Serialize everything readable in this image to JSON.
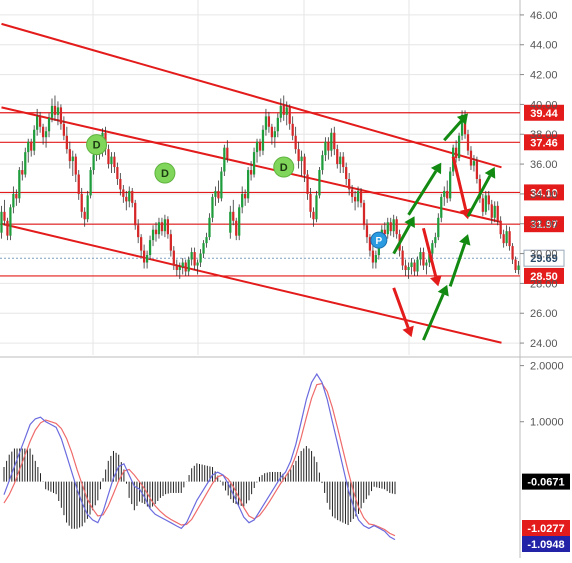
{
  "colors": {
    "background": "#ffffff",
    "grid": "#e6e6e6",
    "bull_candle": "#1f9d3c",
    "bear_candle": "#d62728",
    "wick": "#333333",
    "channel_line": "#e31b1b",
    "level_line": "#e31b1b",
    "level_label_bg": "#e31b1b",
    "current_label_bg": "#ffffff",
    "current_line": "#7f9fbf",
    "arrow_up": "#128a12",
    "arrow_down": "#e31b1b",
    "d_marker": "#7fd65a",
    "p_marker": "#2a9be0",
    "macd_line": "#6b6bdf",
    "signal_line": "#ef6b6b",
    "histogram": "#222222",
    "label_dark_bg": "#000000",
    "label_blue_bg": "#2323a8"
  },
  "chart_data": [
    {
      "type": "candlestick",
      "ylim": [
        23.2,
        47.0
      ],
      "yticks": [
        "46.00",
        "44.00",
        "42.00",
        "40.00",
        "38.00",
        "36.00",
        "34.00",
        "32.00",
        "30.00",
        "28.00",
        "26.00",
        "24.00"
      ],
      "ytick_values": [
        46,
        44,
        42,
        40,
        38,
        36,
        34,
        32,
        30,
        28,
        26,
        24
      ],
      "grid": true,
      "n_bars": 175,
      "candles": [
        [
          31.4,
          33.2,
          31.0,
          32.8
        ],
        [
          32.8,
          33.6,
          31.9,
          32.2
        ],
        [
          32.2,
          32.4,
          30.9,
          31.2
        ],
        [
          31.2,
          33.3,
          30.9,
          33.1
        ],
        [
          33.1,
          34.5,
          32.7,
          34.0
        ],
        [
          34.0,
          34.3,
          33.2,
          33.7
        ],
        [
          33.7,
          35.8,
          33.4,
          35.6
        ],
        [
          35.6,
          36.2,
          34.9,
          35.3
        ],
        [
          35.3,
          37.1,
          35.1,
          36.8
        ],
        [
          36.8,
          37.7,
          36.1,
          37.5
        ],
        [
          37.5,
          37.7,
          36.5,
          36.9
        ],
        [
          36.9,
          38.6,
          36.6,
          38.3
        ],
        [
          38.3,
          39.7,
          37.9,
          39.2
        ],
        [
          39.2,
          39.5,
          38.1,
          38.5
        ],
        [
          38.5,
          38.7,
          37.3,
          37.8
        ],
        [
          37.8,
          38.5,
          37.1,
          38.2
        ],
        [
          38.2,
          39.4,
          37.8,
          39.1
        ],
        [
          39.1,
          40.4,
          38.8,
          39.9
        ],
        [
          39.9,
          40.6,
          38.9,
          39.3
        ],
        [
          39.3,
          40.2,
          38.6,
          39.8
        ],
        [
          39.8,
          40.0,
          38.3,
          38.7
        ],
        [
          38.7,
          39.2,
          37.6,
          37.9
        ],
        [
          37.9,
          38.5,
          36.7,
          37.0
        ],
        [
          37.0,
          37.5,
          35.7,
          36.2
        ],
        [
          36.2,
          36.9,
          35.2,
          36.5
        ],
        [
          36.5,
          36.7,
          34.8,
          35.3
        ],
        [
          35.3,
          35.6,
          33.6,
          34.0
        ],
        [
          34.0,
          34.4,
          32.4,
          32.8
        ],
        [
          32.8,
          33.1,
          31.8,
          32.3
        ],
        [
          32.3,
          34.2,
          32.1,
          33.9
        ],
        [
          33.9,
          35.8,
          33.7,
          35.6
        ],
        [
          35.6,
          36.9,
          35.3,
          36.6
        ],
        [
          36.6,
          37.8,
          36.2,
          37.5
        ],
        [
          37.5,
          37.8,
          36.3,
          36.9
        ],
        [
          36.9,
          38.4,
          36.5,
          38.1
        ],
        [
          38.1,
          38.5,
          36.6,
          37.0
        ],
        [
          37.0,
          37.3,
          35.7,
          36.0
        ],
        [
          36.0,
          36.8,
          35.4,
          36.5
        ],
        [
          36.5,
          36.8,
          35.4,
          35.8
        ],
        [
          35.8,
          36.1,
          34.6,
          35.0
        ],
        [
          35.0,
          35.4,
          33.9,
          34.3
        ],
        [
          34.3,
          34.6,
          33.4,
          33.8
        ],
        [
          33.8,
          34.2,
          32.9,
          33.5
        ],
        [
          33.5,
          34.5,
          33.1,
          34.2
        ],
        [
          34.2,
          34.4,
          33.1,
          33.4
        ],
        [
          33.4,
          33.6,
          31.6,
          31.9
        ],
        [
          31.9,
          32.3,
          30.7,
          31.1
        ],
        [
          31.1,
          31.3,
          29.8,
          30.2
        ],
        [
          30.2,
          30.6,
          29.0,
          29.4
        ],
        [
          29.4,
          30.2,
          29.0,
          29.9
        ],
        [
          29.9,
          31.2,
          29.6,
          30.9
        ],
        [
          30.9,
          31.9,
          30.5,
          31.6
        ],
        [
          31.6,
          32.1,
          30.8,
          31.3
        ],
        [
          31.3,
          32.4,
          31.0,
          32.1
        ],
        [
          32.1,
          32.4,
          31.2,
          31.5
        ],
        [
          31.5,
          32.6,
          31.1,
          32.3
        ],
        [
          32.3,
          32.5,
          31.0,
          31.3
        ],
        [
          31.3,
          31.6,
          29.8,
          30.2
        ],
        [
          30.2,
          30.5,
          28.9,
          29.2
        ],
        [
          29.2,
          29.6,
          28.5,
          28.9
        ],
        [
          28.9,
          29.4,
          28.3,
          29.1
        ],
        [
          29.1,
          29.7,
          28.6,
          29.4
        ],
        [
          29.4,
          29.6,
          28.5,
          28.8
        ],
        [
          28.8,
          29.8,
          28.5,
          29.6
        ],
        [
          29.6,
          30.4,
          29.2,
          30.1
        ],
        [
          30.1,
          30.4,
          28.9,
          29.2
        ],
        [
          29.2,
          29.6,
          28.6,
          29.4
        ],
        [
          29.4,
          30.3,
          29.1,
          30.0
        ],
        [
          30.0,
          30.9,
          29.7,
          30.7
        ],
        [
          30.7,
          31.4,
          30.4,
          31.1
        ],
        [
          31.1,
          32.7,
          30.9,
          32.4
        ],
        [
          32.4,
          34.0,
          32.1,
          33.8
        ],
        [
          33.8,
          34.5,
          33.2,
          34.2
        ],
        [
          34.2,
          34.9,
          33.4,
          33.7
        ],
        [
          33.7,
          35.8,
          33.5,
          35.5
        ],
        [
          35.5,
          37.3,
          35.2,
          37.1
        ],
        [
          37.1,
          37.6,
          36.1,
          36.4
        ],
        [
          36.4,
          38.1,
          36.2,
          37.9
        ],
        [
          37.9,
          39.6,
          37.6,
          39.3
        ],
        [
          39.3,
          39.6,
          37.7,
          38.0
        ],
        [
          38.0,
          38.3,
          36.6,
          36.9
        ],
        [
          36.9,
          37.2,
          35.6,
          35.9
        ],
        [
          35.9,
          36.6,
          35.5,
          36.2
        ],
        [
          36.2,
          36.5,
          34.7,
          35.0
        ],
        [
          35.0,
          35.3,
          33.4,
          33.7
        ],
        [
          33.7,
          34.0,
          32.5,
          32.8
        ],
        [
          32.8,
          34.2,
          32.6,
          33.9
        ],
        [
          33.9,
          34.2,
          32.9,
          33.3
        ],
        [
          33.3,
          33.6,
          32.0,
          32.4
        ],
        [
          32.4,
          33.5,
          32.1,
          33.2
        ],
        [
          33.2,
          33.5,
          31.9,
          32.2
        ],
        [
          32.2,
          32.5,
          31.0,
          31.3
        ],
        [
          31.3,
          31.6,
          30.4,
          30.7
        ],
        [
          30.7,
          31.9,
          30.5,
          31.5
        ],
        [
          31.5,
          31.8,
          30.2,
          30.5
        ],
        [
          30.5,
          30.7,
          29.3,
          29.6
        ],
        [
          29.6,
          29.8,
          28.7,
          28.9
        ],
        [
          28.9,
          29.5,
          28.6,
          29.2
        ]
      ],
      "candle_start_index": 77,
      "extra_candles_hint": "remaining bars are generated by the drawing script from a price path",
      "channel_lines": [
        {
          "from": [
            0,
            45.4
          ],
          "to": [
            175,
            35.4
          ]
        },
        {
          "from": [
            0,
            39.8
          ],
          "to": [
            175,
            31.8
          ]
        },
        {
          "from": [
            0,
            32.0
          ],
          "to": [
            175,
            23.7
          ]
        }
      ],
      "levels": [
        {
          "value": 39.44,
          "label": "39.44"
        },
        {
          "value": 37.46,
          "label": "37.46"
        },
        {
          "value": 34.1,
          "label": "34.10"
        },
        {
          "value": 31.97,
          "label": "31.97"
        },
        {
          "value": 28.5,
          "label": "28.50"
        }
      ],
      "current_price": {
        "value": 29.69,
        "label": "29.69"
      },
      "markers": [
        {
          "type": "D",
          "label": "D",
          "bar": 32,
          "price": 37.3
        },
        {
          "type": "D",
          "label": "D",
          "bar": 55,
          "price": 35.4
        },
        {
          "type": "D",
          "label": "D",
          "bar": 95,
          "price": 35.8
        },
        {
          "type": "P",
          "label": "P",
          "bar": 127,
          "price": 30.9
        }
      ],
      "arrows": [
        {
          "dir": "up",
          "from": [
            132,
            30.0
          ],
          "to": [
            139,
            32.5
          ]
        },
        {
          "dir": "up",
          "from": [
            137,
            32.6
          ],
          "to": [
            148,
            36.1
          ]
        },
        {
          "dir": "up",
          "from": [
            149,
            37.6
          ],
          "to": [
            157,
            39.4
          ]
        },
        {
          "dir": "down",
          "from": [
            152,
            36.5
          ],
          "to": [
            157,
            32.3
          ]
        },
        {
          "dir": "up",
          "from": [
            157,
            32.5
          ],
          "to": [
            166,
            35.8
          ]
        },
        {
          "dir": "down",
          "from": [
            142,
            31.7
          ],
          "to": [
            147,
            27.8
          ]
        },
        {
          "dir": "up",
          "from": [
            151,
            27.8
          ],
          "to": [
            157,
            31.3
          ]
        },
        {
          "dir": "down",
          "from": [
            132,
            27.7
          ],
          "to": [
            138,
            24.4
          ]
        },
        {
          "dir": "up",
          "from": [
            142,
            24.2
          ],
          "to": [
            150,
            27.9
          ]
        }
      ]
    },
    {
      "type": "macd",
      "ylim": [
        -1.25,
        2.1
      ],
      "yticks": [
        "2.0000",
        "1.0000"
      ],
      "ytick_values": [
        2.0,
        1.0
      ],
      "value_labels": [
        {
          "value": -0.0671,
          "label": "-0.0671",
          "style": "dark"
        },
        {
          "value": -1.0277,
          "label": "-1.0277",
          "style": "red"
        },
        {
          "value": -1.0948,
          "label": "-1.0948",
          "style": "blue"
        }
      ],
      "macd_line": [
        -0.3,
        -0.05,
        0.2,
        0.45,
        0.7,
        0.95,
        1.05,
        1.08,
        1.0,
        0.95,
        0.9,
        0.7,
        0.4,
        0.1,
        -0.2,
        -0.45,
        -0.65,
        -0.75,
        -0.8,
        -0.6,
        -0.3,
        0.0,
        0.2,
        0.25,
        0.05,
        -0.15,
        -0.2,
        -0.35,
        -0.55,
        -0.65,
        -0.7,
        -0.75,
        -0.8,
        -0.85,
        -0.9,
        -0.8,
        -0.6,
        -0.4,
        -0.25,
        -0.1,
        0.05,
        0.1,
        0.05,
        -0.1,
        -0.3,
        -0.5,
        -0.7,
        -0.8,
        -0.75,
        -0.6,
        -0.45,
        -0.3,
        -0.15,
        0.0,
        0.1,
        0.3,
        0.6,
        1.0,
        1.4,
        1.7,
        1.85,
        1.7,
        1.4,
        1.0,
        0.6,
        0.2,
        -0.2,
        -0.5,
        -0.75,
        -0.85,
        -0.9,
        -0.85,
        -0.9,
        -0.95,
        -1.05,
        -1.1
      ],
      "signal_line": [
        -0.45,
        -0.3,
        -0.1,
        0.15,
        0.4,
        0.65,
        0.85,
        0.98,
        1.03,
        1.0,
        0.97,
        0.88,
        0.7,
        0.45,
        0.15,
        -0.12,
        -0.38,
        -0.55,
        -0.68,
        -0.66,
        -0.5,
        -0.28,
        -0.05,
        0.12,
        0.15,
        0.05,
        -0.07,
        -0.2,
        -0.36,
        -0.5,
        -0.6,
        -0.68,
        -0.74,
        -0.79,
        -0.84,
        -0.83,
        -0.74,
        -0.58,
        -0.42,
        -0.26,
        -0.1,
        0.02,
        0.05,
        -0.02,
        -0.16,
        -0.34,
        -0.53,
        -0.68,
        -0.73,
        -0.67,
        -0.55,
        -0.41,
        -0.26,
        -0.11,
        0.02,
        0.17,
        0.4,
        0.72,
        1.08,
        1.42,
        1.66,
        1.68,
        1.54,
        1.25,
        0.88,
        0.5,
        0.12,
        -0.23,
        -0.52,
        -0.71,
        -0.82,
        -0.84,
        -0.88,
        -0.92,
        -0.99,
        -1.03
      ]
    }
  ]
}
